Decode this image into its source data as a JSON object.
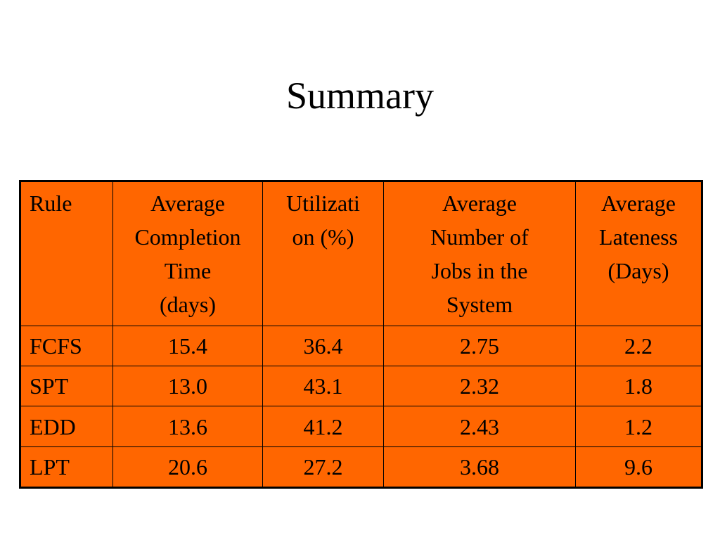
{
  "slide": {
    "title": "Summary"
  },
  "table": {
    "headers": [
      {
        "lines": [
          "Rule"
        ]
      },
      {
        "lines": [
          "Average",
          "Completion",
          "Time",
          "(days)"
        ]
      },
      {
        "lines": [
          "Utilizati",
          "on (%)"
        ]
      },
      {
        "lines": [
          "Average",
          "Number of",
          "Jobs in the",
          "System"
        ]
      },
      {
        "lines": [
          "Average",
          "Lateness",
          "(Days)"
        ]
      }
    ],
    "rows": [
      [
        "FCFS",
        "15.4",
        "36.4",
        "2.75",
        "2.2"
      ],
      [
        "SPT",
        "13.0",
        "43.1",
        "2.32",
        "1.8"
      ],
      [
        "EDD",
        "13.6",
        "41.2",
        "2.43",
        "1.2"
      ],
      [
        "LPT",
        "20.6",
        "27.2",
        "3.68",
        "9.6"
      ]
    ]
  },
  "colors": {
    "table_background": "#ff6600",
    "border": "#000000",
    "page_background": "#ffffff"
  }
}
